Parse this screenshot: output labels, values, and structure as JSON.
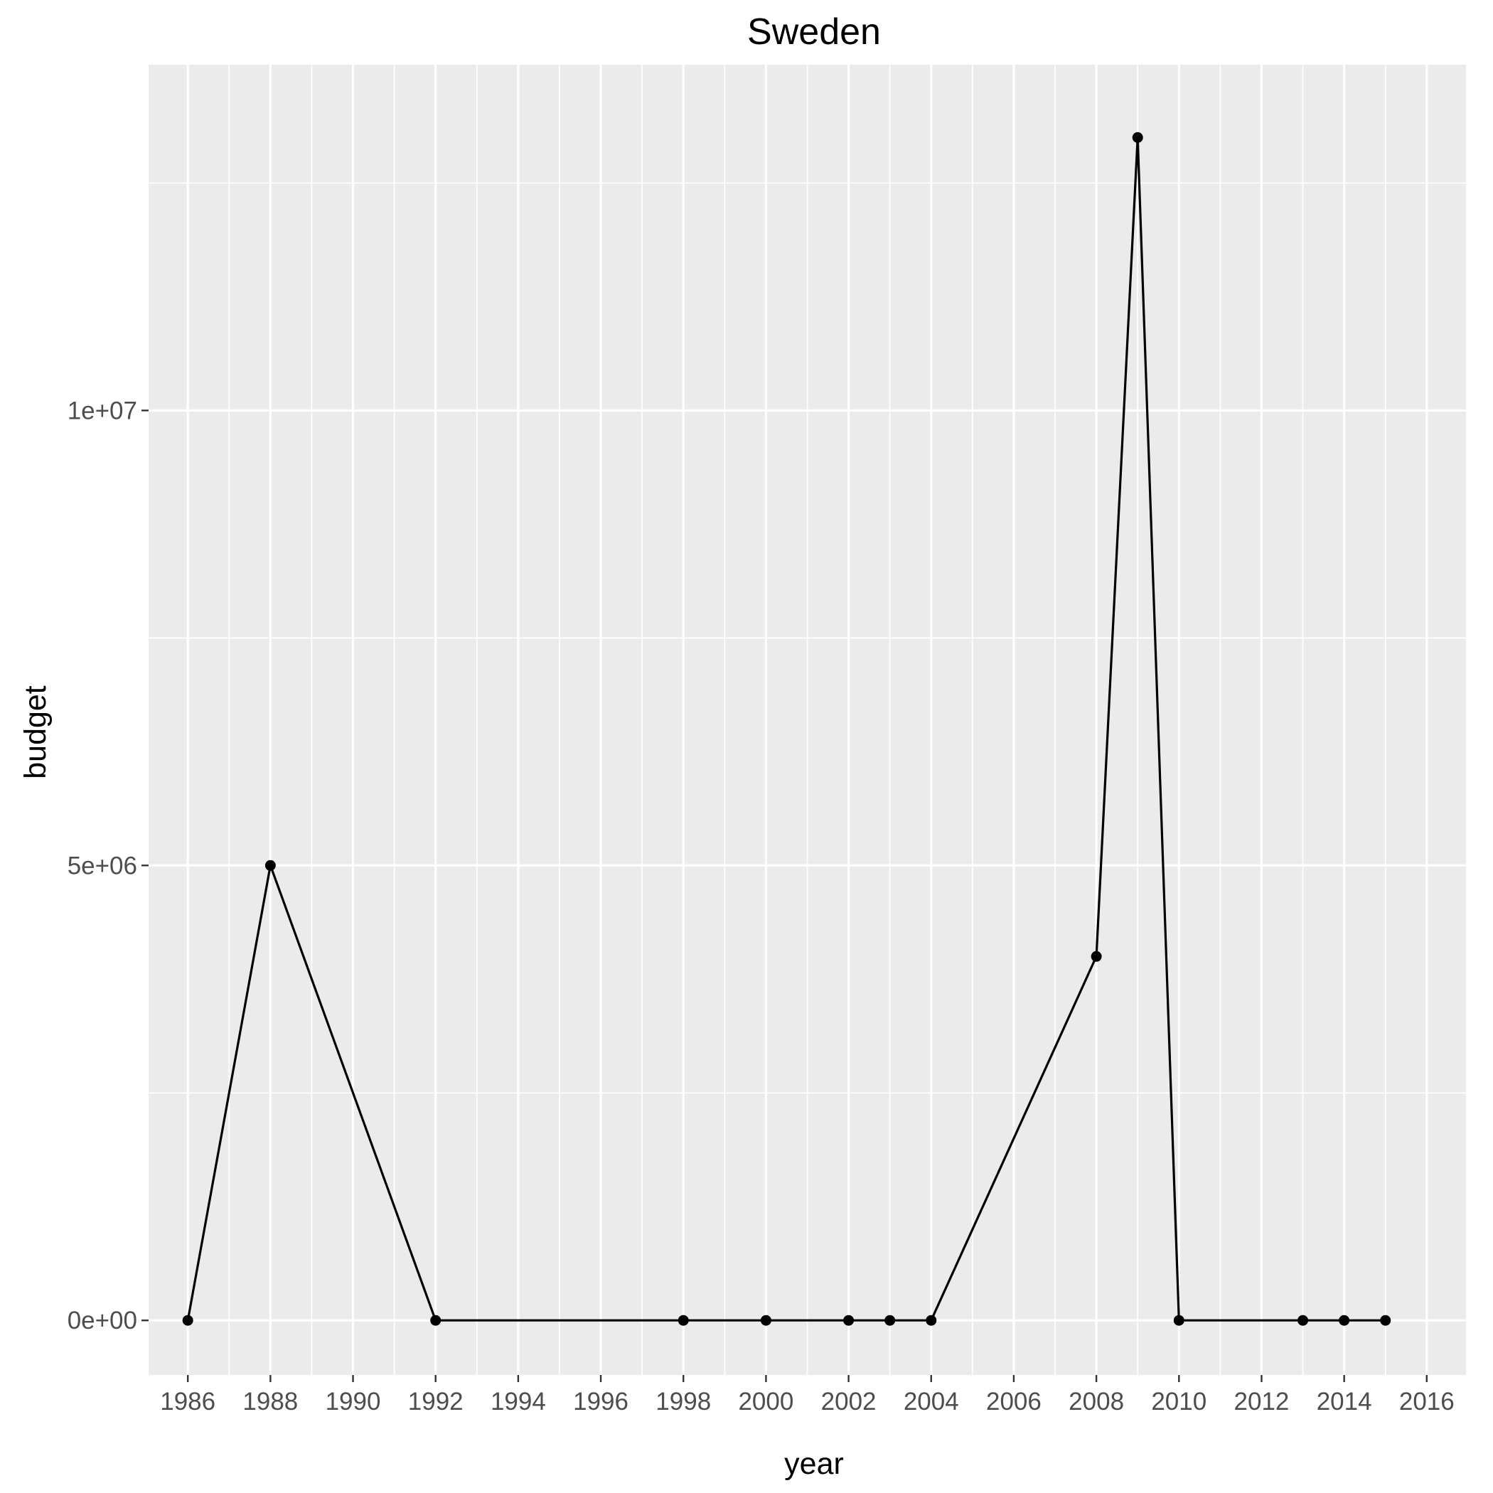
{
  "chart_data": {
    "type": "line",
    "title": "Sweden",
    "xlabel": "year",
    "ylabel": "budget",
    "xlim": [
      1985.05,
      2016.95
    ],
    "ylim": [
      -600000,
      13800000
    ],
    "x_ticks": [
      1986,
      1988,
      1990,
      1992,
      1994,
      1996,
      1998,
      2000,
      2002,
      2004,
      2006,
      2008,
      2010,
      2012,
      2014,
      2016
    ],
    "x_tick_labels": [
      "1986",
      "1988",
      "1990",
      "1992",
      "1994",
      "1996",
      "1998",
      "2000",
      "2002",
      "2004",
      "2006",
      "2008",
      "2010",
      "2012",
      "2014",
      "2016"
    ],
    "y_ticks": [
      0,
      5000000,
      10000000
    ],
    "y_tick_labels": [
      "0e+00",
      "5e+06",
      "1e+07"
    ],
    "y_minor_ticks": [
      2500000,
      7500000,
      12500000
    ],
    "grid": true,
    "series": [
      {
        "x": [
          1986,
          1988,
          1992,
          1998,
          2000,
          2002,
          2003,
          2004,
          2008,
          2009,
          2010,
          2013,
          2014,
          2015
        ],
        "values": [
          0,
          5000000,
          0,
          0,
          0,
          0,
          0,
          0,
          4000000,
          13000000,
          0,
          0,
          0,
          0
        ],
        "color": "#000000"
      }
    ]
  }
}
